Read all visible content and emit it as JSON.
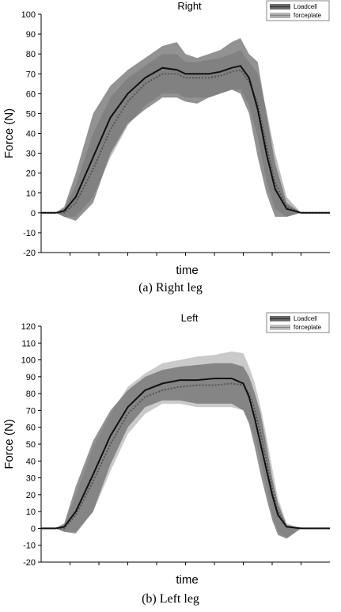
{
  "chart_data": [
    {
      "type": "line",
      "title": "Right",
      "xlabel": "time",
      "ylabel": "Force (N)",
      "caption": "(a) Right leg",
      "ylim": [
        -20,
        100
      ],
      "yticks": [
        "-20",
        "-10",
        "0",
        "10",
        "20",
        "30",
        "40",
        "50",
        "60",
        "70",
        "80",
        "90",
        "100"
      ],
      "ytick_values": [
        -20,
        -10,
        0,
        10,
        20,
        30,
        40,
        50,
        60,
        70,
        80,
        90,
        100
      ],
      "xlim": [
        0,
        100
      ],
      "grid": false,
      "legend": "top-right",
      "series": [
        {
          "name": "Loadcell",
          "color": "#3a3a3a",
          "band_color": "#6e6e6e",
          "x": [
            0,
            5,
            8,
            12,
            18,
            24,
            30,
            36,
            42,
            47,
            50,
            54,
            58,
            62,
            66,
            69,
            72,
            75,
            78,
            81,
            85,
            90,
            100
          ],
          "mean": [
            0,
            0,
            1,
            8,
            28,
            48,
            60,
            68,
            73,
            72,
            70,
            70,
            70,
            71,
            73,
            74,
            68,
            52,
            30,
            12,
            2,
            0,
            0
          ],
          "upper": [
            0,
            0,
            3,
            20,
            50,
            64,
            72,
            78,
            84,
            86,
            80,
            78,
            80,
            82,
            86,
            88,
            80,
            76,
            50,
            25,
            5,
            0,
            0
          ],
          "lower": [
            0,
            0,
            -2,
            -4,
            5,
            30,
            45,
            52,
            58,
            58,
            56,
            55,
            58,
            60,
            62,
            60,
            50,
            28,
            10,
            -2,
            -2,
            0,
            0
          ]
        },
        {
          "name": "forceplate",
          "color": "#888888",
          "band_color": "#b4b4b4",
          "x": [
            0,
            5,
            8,
            12,
            18,
            24,
            30,
            36,
            42,
            47,
            50,
            54,
            58,
            62,
            66,
            69,
            72,
            75,
            78,
            81,
            85,
            90,
            100
          ],
          "mean": [
            0,
            0,
            0,
            5,
            22,
            42,
            56,
            65,
            70,
            70,
            68,
            68,
            68,
            69,
            71,
            72,
            66,
            55,
            34,
            15,
            3,
            0,
            0
          ],
          "upper": [
            0,
            0,
            2,
            14,
            40,
            58,
            68,
            74,
            80,
            80,
            76,
            76,
            77,
            78,
            80,
            82,
            76,
            70,
            52,
            30,
            8,
            0,
            0
          ],
          "lower": [
            0,
            0,
            -2,
            -2,
            8,
            28,
            44,
            54,
            60,
            60,
            58,
            58,
            58,
            60,
            62,
            62,
            54,
            38,
            16,
            2,
            -2,
            0,
            0
          ]
        }
      ]
    },
    {
      "type": "line",
      "title": "Left",
      "xlabel": "time",
      "ylabel": "Force (N)",
      "caption": "(b) Left leg",
      "ylim": [
        -20,
        120
      ],
      "yticks": [
        "-20",
        "-10",
        "0",
        "10",
        "20",
        "30",
        "40",
        "50",
        "60",
        "70",
        "80",
        "90",
        "100",
        "110",
        "120"
      ],
      "ytick_values": [
        -20,
        -10,
        0,
        10,
        20,
        30,
        40,
        50,
        60,
        70,
        80,
        90,
        100,
        110,
        120
      ],
      "xlim": [
        0,
        100
      ],
      "grid": false,
      "legend": "top-right",
      "series": [
        {
          "name": "Loadcell",
          "color": "#3a3a3a",
          "band_color": "#6e6e6e",
          "x": [
            0,
            5,
            8,
            12,
            18,
            24,
            30,
            36,
            42,
            48,
            54,
            60,
            66,
            70,
            72,
            74,
            76,
            78,
            80,
            82,
            85,
            90,
            100
          ],
          "mean": [
            0,
            0,
            1,
            10,
            32,
            55,
            72,
            82,
            86,
            88,
            88,
            89,
            89,
            86,
            78,
            65,
            50,
            35,
            20,
            8,
            1,
            0,
            0
          ],
          "upper": [
            0,
            0,
            3,
            25,
            52,
            70,
            82,
            90,
            94,
            96,
            97,
            98,
            98,
            96,
            90,
            80,
            68,
            50,
            30,
            15,
            2,
            0,
            0
          ],
          "lower": [
            0,
            0,
            -2,
            -3,
            10,
            38,
            60,
            72,
            76,
            76,
            74,
            74,
            74,
            70,
            62,
            48,
            32,
            18,
            5,
            -4,
            -6,
            0,
            0
          ]
        },
        {
          "name": "forceplate",
          "color": "#888888",
          "band_color": "#c4c4c4",
          "x": [
            0,
            5,
            8,
            12,
            18,
            24,
            30,
            36,
            42,
            48,
            54,
            60,
            66,
            70,
            72,
            74,
            76,
            78,
            80,
            82,
            85,
            90,
            100
          ],
          "mean": [
            0,
            0,
            0,
            8,
            28,
            50,
            68,
            78,
            82,
            84,
            85,
            85,
            86,
            85,
            80,
            70,
            56,
            40,
            24,
            10,
            1,
            0,
            0
          ],
          "upper": [
            0,
            0,
            2,
            20,
            48,
            68,
            84,
            92,
            98,
            100,
            102,
            103,
            105,
            104,
            96,
            86,
            72,
            55,
            36,
            18,
            3,
            0,
            0
          ],
          "lower": [
            0,
            0,
            -2,
            -2,
            10,
            34,
            56,
            68,
            74,
            74,
            72,
            72,
            72,
            70,
            64,
            54,
            40,
            24,
            8,
            -2,
            -6,
            0,
            0
          ]
        }
      ]
    }
  ]
}
